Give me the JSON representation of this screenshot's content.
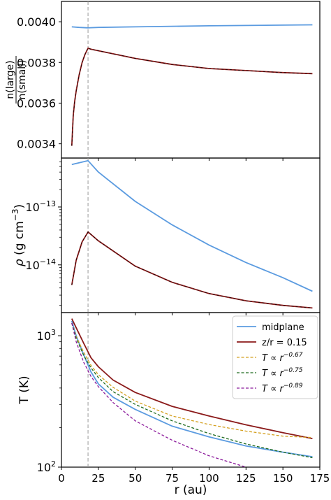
{
  "chart_data": [
    {
      "type": "line",
      "panel": "top",
      "ylabel_numerator": "n(large)",
      "ylabel_denominator": "n(small)",
      "xlim": [
        0,
        175
      ],
      "ylim": [
        0.00333,
        0.0041
      ],
      "yscale": "linear",
      "yticks": [
        0.0034,
        0.0036,
        0.0038,
        0.004
      ],
      "ytick_labels": [
        "0.0034",
        "0.0036",
        "0.0038",
        "0.0040"
      ],
      "vline_x": 18,
      "series": [
        {
          "name": "midplane",
          "color": "#5b9be0",
          "x": [
            7,
            12,
            18,
            25,
            50,
            100,
            170
          ],
          "y": [
            0.003975,
            0.003972,
            0.00397,
            0.003972,
            0.003975,
            0.00398,
            0.003985
          ]
        },
        {
          "name": "z/r = 0.15",
          "color": "#8b1a1a",
          "x": [
            7,
            8,
            9,
            10,
            12,
            14,
            16,
            18,
            20,
            30,
            50,
            75,
            100,
            125,
            150,
            170
          ],
          "y": [
            0.00339,
            0.00354,
            0.00361,
            0.00366,
            0.00374,
            0.0038,
            0.00384,
            0.00387,
            0.003865,
            0.00385,
            0.00382,
            0.00379,
            0.00377,
            0.00376,
            0.00375,
            0.003745
          ]
        }
      ]
    },
    {
      "type": "line",
      "panel": "middle",
      "ylabel": "ρ (g cm⁻³)",
      "ylabel_rho": "ρ",
      "ylabel_unit": "(g cm",
      "ylabel_exp": "−3",
      "ylabel_close": ")",
      "xlim": [
        0,
        175
      ],
      "ylim": [
        1.5e-15,
        7e-13
      ],
      "yscale": "log",
      "yticks": [
        1e-13,
        1e-14
      ],
      "ytick_base": "10",
      "ytick_exponents": [
        "−13",
        "−14"
      ],
      "vline_x": 18,
      "series": [
        {
          "name": "midplane",
          "color": "#5b9be0",
          "x": [
            7,
            12,
            18,
            25,
            50,
            75,
            100,
            125,
            150,
            170
          ],
          "y": [
            5.4e-13,
            5.8e-13,
            6.3e-13,
            4e-13,
            1.25e-13,
            4.9e-14,
            2.2e-14,
            1.1e-14,
            6e-15,
            3.5e-15
          ]
        },
        {
          "name": "z/r = 0.15",
          "color": "#8b1a1a",
          "x": [
            7,
            10,
            14,
            18,
            25,
            50,
            75,
            100,
            125,
            150,
            170
          ],
          "y": [
            4.5e-15,
            1.2e-14,
            2.5e-14,
            3.7e-14,
            2.6e-14,
            9.5e-15,
            5e-15,
            3.2e-15,
            2.4e-15,
            2e-15,
            1.8e-15
          ]
        }
      ]
    },
    {
      "type": "line",
      "panel": "bottom",
      "ylabel": "T (K)",
      "xlabel": "r (au)",
      "xlim": [
        0,
        175
      ],
      "xticks": [
        0,
        25,
        50,
        75,
        100,
        125,
        150,
        175
      ],
      "ylim": [
        100,
        1500
      ],
      "yscale": "log",
      "yticks": [
        100,
        1000
      ],
      "ytick_base": "10",
      "ytick_exponents": [
        "2",
        "3"
      ],
      "vline_x": 18,
      "legend_loc": "upper right",
      "series": [
        {
          "name": "midplane",
          "color": "#5b9be0",
          "dash": "solid",
          "x": [
            7,
            10,
            15,
            20,
            25,
            35,
            50,
            75,
            100,
            125,
            150,
            170
          ],
          "y": [
            1300,
            1000,
            720,
            530,
            430,
            340,
            275,
            205,
            170,
            145,
            130,
            120
          ]
        },
        {
          "name": "z/r = 0.15",
          "color": "#8b1a1a",
          "dash": "solid",
          "x": [
            7,
            10,
            15,
            20,
            25,
            35,
            50,
            75,
            100,
            125,
            150,
            170
          ],
          "y": [
            1350,
            1150,
            880,
            680,
            580,
            460,
            370,
            290,
            245,
            210,
            183,
            165
          ]
        },
        {
          "name": "T ∝ r^-0.67",
          "label_base": "T ∝ r",
          "label_exp": "−0.67",
          "color": "#d4a020",
          "dash": "dashed",
          "x": [
            7,
            10,
            15,
            20,
            25,
            35,
            50,
            75,
            100,
            125,
            150,
            170
          ],
          "y": [
            1250,
            985,
            752,
            595,
            505,
            405,
            318,
            245,
            211,
            188,
            172,
            168
          ]
        },
        {
          "name": "T ∝ r^-0.75",
          "label_base": "T ∝ r",
          "label_exp": "−0.75",
          "color": "#1f6b1f",
          "dash": "dashed",
          "x": [
            7,
            10,
            15,
            20,
            25,
            35,
            50,
            75,
            100,
            125,
            150,
            170
          ],
          "y": [
            1250,
            960,
            710,
            570,
            480,
            375,
            300,
            225,
            180,
            150,
            130,
            118
          ]
        },
        {
          "name": "T ∝ r^-0.89",
          "label_base": "T ∝ r",
          "label_exp": "−0.89",
          "color": "#8b1a9b",
          "dash": "dashed",
          "x": [
            7,
            10,
            15,
            20,
            25,
            35,
            50,
            75,
            100,
            125
          ],
          "y": [
            1250,
            900,
            630,
            490,
            410,
            310,
            225,
            160,
            122,
            100
          ]
        }
      ]
    }
  ]
}
